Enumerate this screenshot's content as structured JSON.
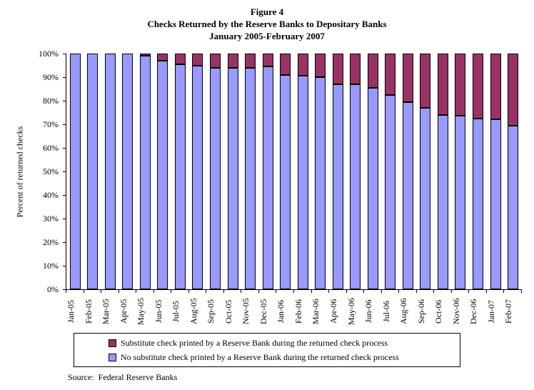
{
  "title": {
    "line1": "Figure 4",
    "line2": "Checks Returned by the Reserve Banks to Depositary Banks",
    "line3": "January 2005-February 2007"
  },
  "y_axis": {
    "label": "Percent of returned checks",
    "ticks": [
      "100%",
      "90%",
      "80%",
      "70%",
      "60%",
      "50%",
      "40%",
      "30%",
      "20%",
      "10%",
      "0%"
    ]
  },
  "legend": {
    "items": [
      {
        "label": "Substitute check printed by a Reserve Bank during the returned check process",
        "color": "#993366"
      },
      {
        "label": "No substitute check printed by a Reserve Bank during the returned check process",
        "color": "#9999FF"
      }
    ]
  },
  "source": "Source:  Federal Reserve Banks",
  "chart_data": {
    "type": "bar",
    "stacked": true,
    "title": "Figure 4 — Checks Returned by the Reserve Banks to Depositary Banks, January 2005-February 2007",
    "xlabel": "",
    "ylabel": "Percent of returned checks",
    "ylim": [
      0,
      100
    ],
    "grid": false,
    "legend_position": "bottom",
    "categories": [
      "Jan-05",
      "Feb-05",
      "Mar-05",
      "Apr-05",
      "May-05",
      "Jun-05",
      "Jul-05",
      "Aug-05",
      "Sep-05",
      "Oct-05",
      "Nov-05",
      "Dec-05",
      "Jan-06",
      "Feb-06",
      "Mar-06",
      "Apr-06",
      "May-06",
      "Jun-06",
      "Jul-06",
      "Aug-06",
      "Sep-06",
      "Oct-06",
      "Nov-06",
      "Dec-06",
      "Jan-07",
      "Feb-07"
    ],
    "series": [
      {
        "name": "No substitute check printed by a Reserve Bank during the returned check process",
        "color": "#9999FF",
        "values": [
          100,
          100,
          100,
          100,
          99,
          97,
          95.5,
          95,
          94,
          94,
          94,
          94.5,
          91,
          90.5,
          90,
          87,
          87,
          85.5,
          82.5,
          79.5,
          77,
          74,
          73.5,
          72.5,
          72,
          69.5
        ]
      },
      {
        "name": "Substitute check printed by a Reserve Bank during the returned check process",
        "color": "#993366",
        "values": [
          0,
          0,
          0,
          0,
          1,
          3,
          4.5,
          5,
          6,
          6,
          6,
          5.5,
          9,
          9.5,
          10,
          13,
          13,
          14.5,
          17.5,
          20.5,
          23,
          26,
          26.5,
          27.5,
          28,
          30.5
        ]
      }
    ]
  }
}
